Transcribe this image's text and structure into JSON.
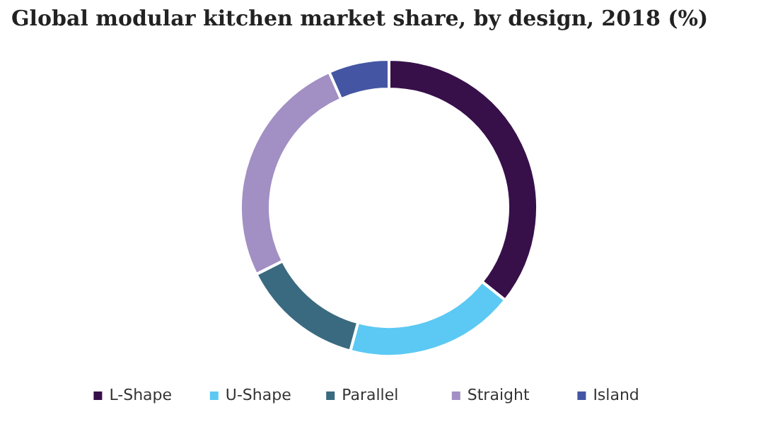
{
  "chart_data": {
    "type": "donut",
    "title": "Global modular kitchen market share, by design, 2018 (%)",
    "categories": [
      "L-Shape",
      "U-Shape",
      "Parallel",
      "Straight",
      "Island"
    ],
    "values": [
      35.7,
      18.5,
      13.4,
      25.8,
      6.6
    ],
    "colors": [
      "#37104a",
      "#5bc9f3",
      "#3a6a80",
      "#a28fc3",
      "#4456a3"
    ],
    "legend": "bottom"
  }
}
